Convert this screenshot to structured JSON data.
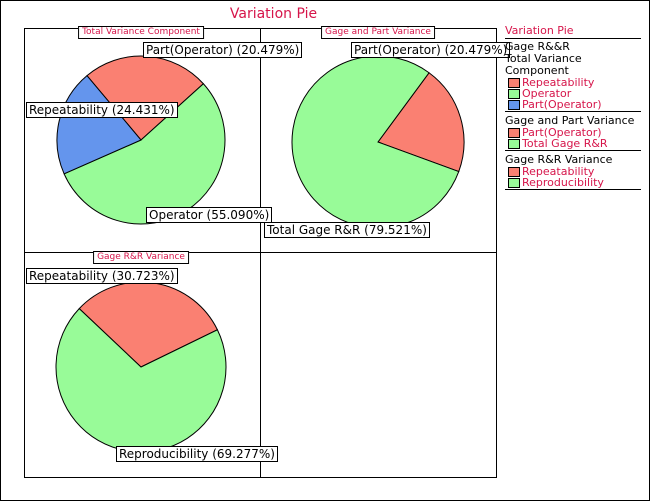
{
  "title": "Variation Pie",
  "colors": {
    "red": "#fa8072",
    "green": "#98fb98",
    "blue": "#6495ed",
    "accent": "#d6154a"
  },
  "legend": {
    "title": "Variation Pie",
    "root": "Gage R&&R",
    "groups": [
      {
        "name": "Total Variance Component",
        "items": [
          {
            "label": "Repeatability",
            "color": "#fa8072"
          },
          {
            "label": "Operator",
            "color": "#98fb98"
          },
          {
            "label": "Part(Operator)",
            "color": "#6495ed"
          }
        ]
      },
      {
        "name": "Gage and Part Variance",
        "items": [
          {
            "label": "Part(Operator)",
            "color": "#fa8072"
          },
          {
            "label": "Total Gage R&R",
            "color": "#98fb98"
          }
        ]
      },
      {
        "name": "Gage R&R Variance",
        "items": [
          {
            "label": "Repeatability",
            "color": "#fa8072"
          },
          {
            "label": "Reproducibility",
            "color": "#98fb98"
          }
        ]
      }
    ]
  },
  "chart_data": [
    {
      "type": "pie",
      "title": "Total Variance Component",
      "slices": [
        {
          "label": "Repeatability",
          "value": 24.431,
          "color": "#fa8072",
          "text": "Repeatability (24.431%)"
        },
        {
          "label": "Operator",
          "value": 55.09,
          "color": "#98fb98",
          "text": "Operator (55.090%)"
        },
        {
          "label": "Part(Operator)",
          "value": 20.479,
          "color": "#6495ed",
          "text": "Part(Operator) (20.479%)"
        }
      ]
    },
    {
      "type": "pie",
      "title": "Gage and Part Variance",
      "slices": [
        {
          "label": "Part(Operator)",
          "value": 20.479,
          "color": "#fa8072",
          "text": "Part(Operator) (20.479%)"
        },
        {
          "label": "Total Gage R&R",
          "value": 79.521,
          "color": "#98fb98",
          "text": "Total Gage R&R (79.521%)"
        }
      ]
    },
    {
      "type": "pie",
      "title": "Gage R&R Variance",
      "slices": [
        {
          "label": "Repeatability",
          "value": 30.723,
          "color": "#fa8072",
          "text": "Repeatability (30.723%)"
        },
        {
          "label": "Reproducibility",
          "value": 69.277,
          "color": "#98fb98",
          "text": "Reproducibility (69.277%)"
        }
      ]
    }
  ]
}
